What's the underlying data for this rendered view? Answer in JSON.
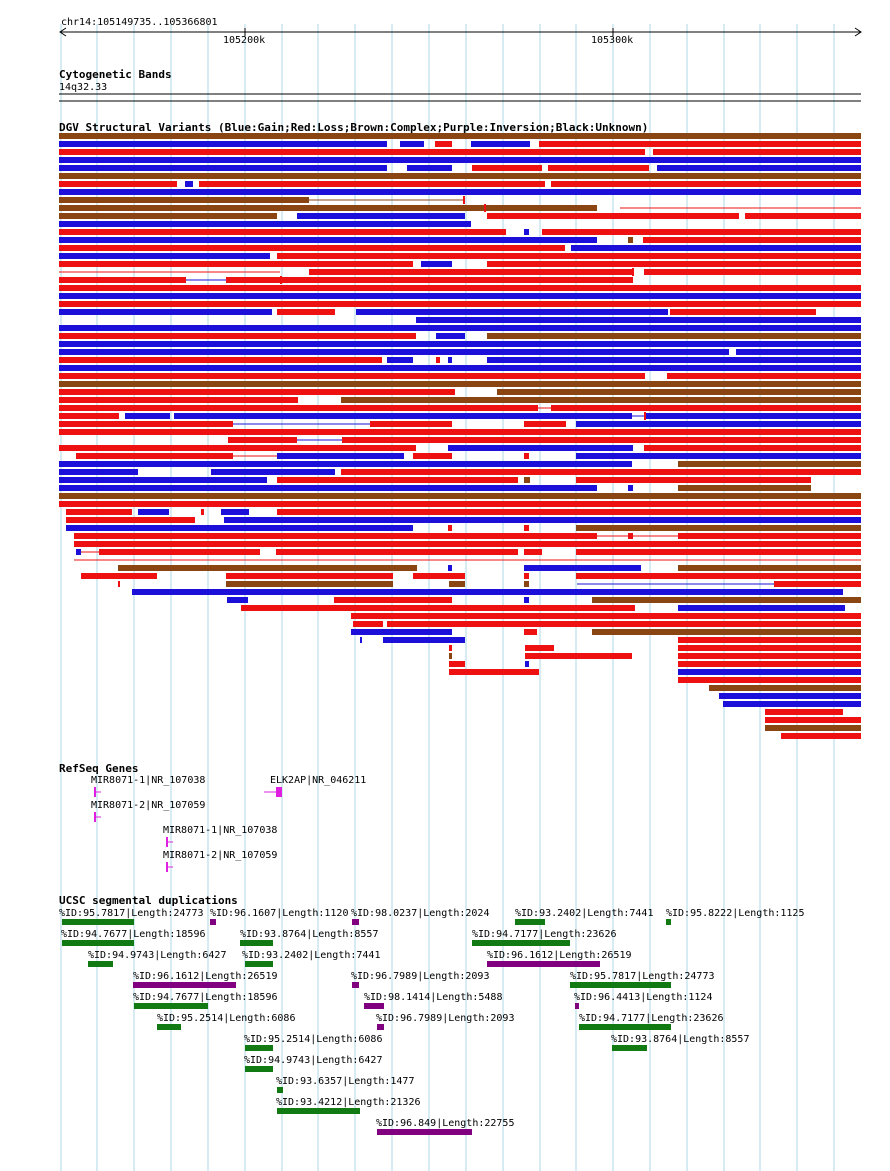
{
  "region": "chr14:105149735..105366801",
  "ruler": {
    "ticks": [
      {
        "label": "105200k"
      },
      {
        "label": "105300k"
      }
    ]
  },
  "tracks": {
    "cyto": {
      "title": "Cytogenetic Bands",
      "band": "14q32.33"
    },
    "dgv": {
      "title": "DGV Structural Variants (Blue:Gain;Red:Loss;Brown:Complex;Purple:Inversion;Black:Unknown)"
    },
    "refseq": {
      "title": "RefSeq Genes"
    },
    "segdup": {
      "title": "UCSC segmental duplications"
    }
  },
  "colors": {
    "gain": "#1c0fd9",
    "loss": "#ee1111",
    "complex": "#8b4513",
    "inversion": "#800080",
    "segdup_green": "#127a12",
    "refseq": "#e020e0",
    "grid": "#add8e6"
  },
  "genes": [
    {
      "label": "MIR8071-1|NR_107038"
    },
    {
      "label": "ELK2AP|NR_046211"
    },
    {
      "label": "MIR8071-2|NR_107059"
    },
    {
      "label": "MIR8071-1|NR_107038"
    },
    {
      "label": "MIR8071-2|NR_107059"
    }
  ],
  "segdups": [
    {
      "label": "%ID:95.7817|Length:24773",
      "color": "green"
    },
    {
      "label": "%ID:96.1607|Length:1120",
      "color": "purple"
    },
    {
      "label": "%ID:98.0237|Length:2024",
      "color": "purple"
    },
    {
      "label": "%ID:93.2402|Length:7441",
      "color": "green"
    },
    {
      "label": "%ID:95.8222|Length:1125",
      "color": "green"
    },
    {
      "label": "%ID:94.7677|Length:18596",
      "color": "green"
    },
    {
      "label": "%ID:93.8764|Length:8557",
      "color": "green"
    },
    {
      "label": "%ID:94.7177|Length:23626",
      "color": "green"
    },
    {
      "label": "%ID:94.9743|Length:6427",
      "color": "green"
    },
    {
      "label": "%ID:93.2402|Length:7441",
      "color": "green"
    },
    {
      "label": "%ID:96.1612|Length:26519",
      "color": "purple"
    },
    {
      "label": "%ID:96.1612|Length:26519",
      "color": "purple"
    },
    {
      "label": "%ID:96.7989|Length:2093",
      "color": "purple"
    },
    {
      "label": "%ID:95.7817|Length:24773",
      "color": "green"
    },
    {
      "label": "%ID:94.7677|Length:18596",
      "color": "green"
    },
    {
      "label": "%ID:98.1414|Length:5488",
      "color": "purple"
    },
    {
      "label": "%ID:96.4413|Length:1124",
      "color": "purple"
    },
    {
      "label": "%ID:95.2514|Length:6086",
      "color": "green"
    },
    {
      "label": "%ID:96.7989|Length:2093",
      "color": "purple"
    },
    {
      "label": "%ID:94.7177|Length:23626",
      "color": "green"
    },
    {
      "label": "%ID:95.2514|Length:6086",
      "color": "green"
    },
    {
      "label": "%ID:93.8764|Length:8557",
      "color": "green"
    },
    {
      "label": "%ID:94.9743|Length:6427",
      "color": "green"
    },
    {
      "label": "%ID:93.6357|Length:1477",
      "color": "green"
    },
    {
      "label": "%ID:93.4212|Length:21326",
      "color": "green"
    },
    {
      "label": "%ID:96.849|Length:22755",
      "color": "purple"
    }
  ]
}
